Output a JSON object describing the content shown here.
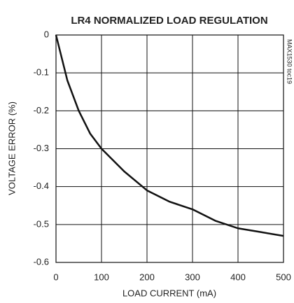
{
  "chart_data": {
    "type": "line",
    "title": "LR4 NORMALIZED LOAD REGULATION",
    "x_label": "LOAD CURRENT (mA)",
    "y_label": "VOLTAGE ERROR (%)",
    "annotation": "MAX1530 toc19",
    "x": [
      0,
      25,
      50,
      75,
      100,
      150,
      200,
      250,
      300,
      350,
      400,
      450,
      500
    ],
    "series": [
      {
        "name": "LR4",
        "color": "#111111",
        "values": [
          0,
          -0.12,
          -0.2,
          -0.26,
          -0.3,
          -0.36,
          -0.41,
          -0.44,
          -0.46,
          -0.49,
          -0.51,
          -0.52,
          -0.53
        ]
      }
    ],
    "xlim": [
      0,
      500
    ],
    "xticks": [
      0,
      100,
      200,
      300,
      400,
      500
    ],
    "ylim": [
      -0.6,
      0
    ],
    "yticks": [
      0,
      -0.1,
      -0.2,
      -0.3,
      -0.4,
      -0.5,
      -0.6
    ],
    "grid": true
  }
}
